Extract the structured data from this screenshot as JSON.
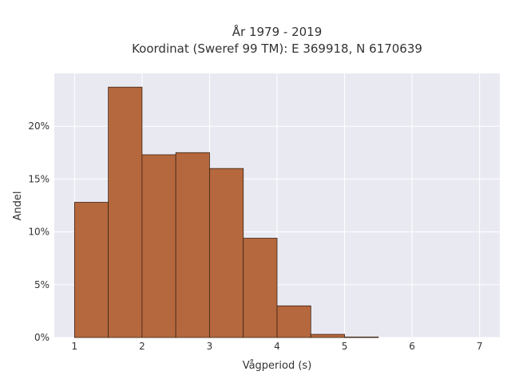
{
  "chart_data": {
    "type": "bar",
    "title": "År 1979 - 2019",
    "subtitle": "Koordinat (Sweref 99 TM): E 369918, N 6170639",
    "xlabel": "Vågperiod (s)",
    "ylabel": "Andel",
    "xlim": [
      0.7,
      7.3
    ],
    "ylim": [
      0,
      0.25
    ],
    "x_ticks": [
      1,
      2,
      3,
      4,
      5,
      6,
      7
    ],
    "x_tick_labels": [
      "1",
      "2",
      "3",
      "4",
      "5",
      "6",
      "7"
    ],
    "y_ticks": [
      0,
      0.05,
      0.1,
      0.15,
      0.2
    ],
    "y_tick_labels": [
      "0%",
      "5%",
      "10%",
      "15%",
      "20%"
    ],
    "bins": [
      {
        "x0": 1.0,
        "x1": 1.5,
        "value": 0.128
      },
      {
        "x0": 1.5,
        "x1": 2.0,
        "value": 0.237
      },
      {
        "x0": 2.0,
        "x1": 2.5,
        "value": 0.173
      },
      {
        "x0": 2.5,
        "x1": 3.0,
        "value": 0.175
      },
      {
        "x0": 3.0,
        "x1": 3.5,
        "value": 0.16
      },
      {
        "x0": 3.5,
        "x1": 4.0,
        "value": 0.094
      },
      {
        "x0": 4.0,
        "x1": 4.5,
        "value": 0.03
      },
      {
        "x0": 4.5,
        "x1": 5.0,
        "value": 0.003
      },
      {
        "x0": 5.0,
        "x1": 5.5,
        "value": 0.0005
      }
    ],
    "grid": true,
    "colors": {
      "bar_fill": "#b5683d",
      "bar_edge": "#3b2314",
      "plot_bg": "#e9e9f2",
      "grid": "#ffffff"
    }
  }
}
